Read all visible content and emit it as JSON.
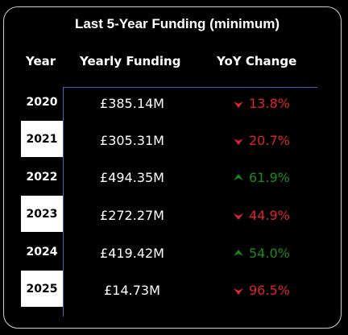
{
  "title": "Last 5-Year Funding (minimum)",
  "headers": {
    "year": "Year",
    "funding": "Yearly Funding",
    "yoy": "YoY Change"
  },
  "colors": {
    "down": "#e0232b",
    "up": "#1a8a1a",
    "divider": "#3b67b8"
  },
  "rows": [
    {
      "year": "2020",
      "funding": "£385.14M",
      "yoy": "13.8%",
      "direction": "down",
      "year_style": "dark"
    },
    {
      "year": "2021",
      "funding": "£305.31M",
      "yoy": "20.7%",
      "direction": "down",
      "year_style": "light"
    },
    {
      "year": "2022",
      "funding": "£494.35M",
      "yoy": "61.9%",
      "direction": "up",
      "year_style": "dark"
    },
    {
      "year": "2023",
      "funding": "£272.27M",
      "yoy": "44.9%",
      "direction": "down",
      "year_style": "light"
    },
    {
      "year": "2024",
      "funding": "£419.42M",
      "yoy": "54.0%",
      "direction": "up",
      "year_style": "dark"
    },
    {
      "year": "2025",
      "funding": "£14.73M",
      "yoy": "96.5%",
      "direction": "down",
      "year_style": "light"
    }
  ]
}
